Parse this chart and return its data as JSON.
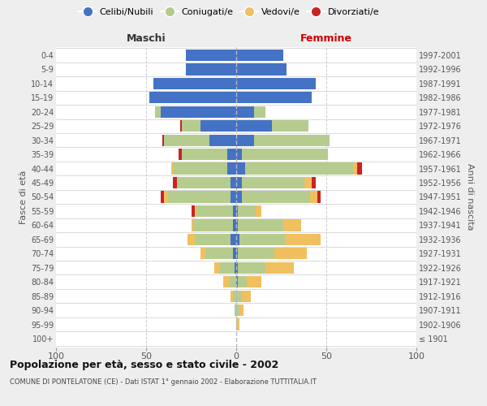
{
  "age_groups": [
    "100+",
    "95-99",
    "90-94",
    "85-89",
    "80-84",
    "75-79",
    "70-74",
    "65-69",
    "60-64",
    "55-59",
    "50-54",
    "45-49",
    "40-44",
    "35-39",
    "30-34",
    "25-29",
    "20-24",
    "15-19",
    "10-14",
    "5-9",
    "0-4"
  ],
  "birth_years": [
    "≤ 1901",
    "1902-1906",
    "1907-1911",
    "1912-1916",
    "1917-1921",
    "1922-1926",
    "1927-1931",
    "1932-1936",
    "1937-1941",
    "1942-1946",
    "1947-1951",
    "1952-1956",
    "1957-1961",
    "1962-1966",
    "1967-1971",
    "1972-1976",
    "1977-1981",
    "1982-1986",
    "1987-1991",
    "1992-1996",
    "1997-2001"
  ],
  "male_celibi": [
    0,
    0,
    0,
    0,
    0,
    1,
    2,
    3,
    2,
    2,
    3,
    3,
    5,
    5,
    15,
    20,
    42,
    48,
    46,
    28,
    28
  ],
  "male_coniugati": [
    0,
    0,
    1,
    2,
    4,
    8,
    15,
    20,
    22,
    20,
    35,
    30,
    30,
    25,
    25,
    10,
    3,
    0,
    0,
    0,
    0
  ],
  "male_vedovi": [
    0,
    0,
    0,
    1,
    3,
    3,
    3,
    4,
    1,
    1,
    2,
    0,
    1,
    0,
    0,
    0,
    0,
    0,
    0,
    0,
    0
  ],
  "male_divorziati": [
    0,
    0,
    0,
    0,
    0,
    0,
    0,
    0,
    0,
    2,
    2,
    2,
    0,
    2,
    1,
    1,
    0,
    0,
    0,
    0,
    0
  ],
  "fem_nubili": [
    0,
    0,
    0,
    0,
    1,
    1,
    1,
    2,
    1,
    1,
    3,
    3,
    5,
    3,
    10,
    20,
    10,
    42,
    44,
    28,
    26
  ],
  "fem_coniugate": [
    0,
    1,
    2,
    3,
    5,
    15,
    20,
    25,
    25,
    10,
    38,
    35,
    60,
    48,
    42,
    20,
    6,
    0,
    0,
    0,
    0
  ],
  "fem_vedove": [
    0,
    1,
    2,
    5,
    8,
    16,
    18,
    20,
    10,
    3,
    4,
    4,
    2,
    0,
    0,
    0,
    0,
    0,
    0,
    0,
    0
  ],
  "fem_divorziate": [
    0,
    0,
    0,
    0,
    0,
    0,
    0,
    0,
    0,
    0,
    2,
    2,
    3,
    0,
    0,
    0,
    0,
    0,
    0,
    0,
    0
  ],
  "color_cel": "#4472C4",
  "color_con": "#B5CC8E",
  "color_ved": "#F0C060",
  "color_div": "#CC2222",
  "xlim": 100,
  "title": "Popolazione per età, sesso e stato civile - 2002",
  "subtitle": "COMUNE DI PONTELATONE (CE) - Dati ISTAT 1° gennaio 2002 - Elaborazione TUTTITALIA.IT",
  "ylabel_left": "Fasce di età",
  "ylabel_right": "Anni di nascita",
  "label_maschi": "Maschi",
  "label_femmine": "Femmine",
  "bg_color": "#eeeeee",
  "plot_bg": "#ffffff",
  "grid_color": "#cccccc",
  "legend_labels": [
    "Celibi/Nubili",
    "Coniugati/e",
    "Vedovi/e",
    "Divorziati/e"
  ]
}
